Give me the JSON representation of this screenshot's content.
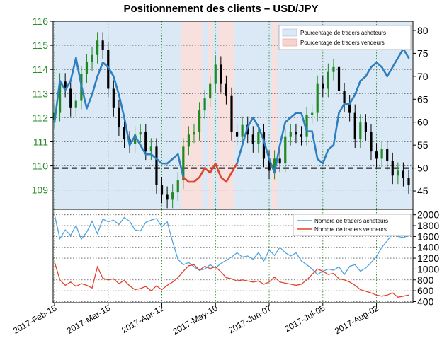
{
  "chart_data": [
    {
      "type": "line",
      "title": "Positionnement des clients – USD/JPY",
      "subtype": "price bars with sentiment overlay",
      "price_axis": {
        "side": "left",
        "ylim": [
          108.2,
          116.0
        ],
        "ticks": [
          "116",
          "115",
          "114",
          "113",
          "112",
          "111",
          "110",
          "109"
        ]
      },
      "sentiment_axis": {
        "side": "right",
        "ylim": [
          41,
          82
        ],
        "ticks": [
          "80",
          "75",
          "70",
          "65",
          "60",
          "55",
          "50",
          "45"
        ]
      },
      "x_tick_labels": [
        "2017-Feb-15",
        "2017-Mar-15",
        "2017-Apr-12",
        "2017-May-10",
        "2017-Jun-07",
        "2017-Jul-05",
        "2017-Aug-02"
      ],
      "legend": {
        "position": "top-right",
        "entries": [
          "Pourcentage de traders acheteurs",
          "Pourcentage de traders vendeurs"
        ]
      },
      "reference_line": {
        "value": 50,
        "style": "dashed",
        "color": "#000000"
      },
      "colors": {
        "long_line": "#2e7fc0",
        "short_line": "#e0442e",
        "bull_bar": "#1f8a1f",
        "bear_bar": "#000000",
        "long_fill": "#dbe9f6",
        "short_fill": "#f7e0de"
      },
      "x": [
        "02-15",
        "02-17",
        "02-21",
        "02-23",
        "02-27",
        "03-01",
        "03-03",
        "03-07",
        "03-09",
        "03-13",
        "03-15",
        "03-17",
        "03-21",
        "03-23",
        "03-27",
        "03-29",
        "03-31",
        "04-04",
        "04-06",
        "04-10",
        "04-12",
        "04-14",
        "04-18",
        "04-20",
        "04-24",
        "04-26",
        "04-28",
        "05-02",
        "05-04",
        "05-08",
        "05-10",
        "05-12",
        "05-16",
        "05-18",
        "05-22",
        "05-24",
        "05-26",
        "05-30",
        "06-01",
        "06-05",
        "06-07",
        "06-09",
        "06-13",
        "06-15",
        "06-19",
        "06-21",
        "06-23",
        "06-27",
        "06-29",
        "07-03",
        "07-05",
        "07-07",
        "07-11",
        "07-13",
        "07-17",
        "07-19",
        "07-21",
        "07-25",
        "07-27",
        "07-31",
        "08-02",
        "08-04",
        "08-08",
        "08-10",
        "08-14",
        "08-16",
        "08-18"
      ],
      "series": [
        {
          "name": "USD/JPY",
          "close": [
            112.2,
            113.5,
            113.2,
            112.4,
            112.7,
            113.8,
            114.3,
            114.6,
            115.2,
            114.8,
            113.2,
            112.4,
            111.6,
            111.1,
            110.9,
            111.3,
            111.4,
            110.6,
            110.8,
            109.2,
            108.8,
            108.6,
            108.9,
            109.4,
            110.8,
            111.3,
            111.4,
            112.3,
            112.8,
            113.4,
            114.2,
            113.4,
            112.9,
            111.4,
            111.2,
            111.7,
            111.3,
            110.9,
            111.4,
            110.3,
            109.8,
            110.3,
            110.1,
            111.2,
            111.4,
            111.3,
            111.2,
            112.1,
            112.2,
            113.4,
            113.2,
            113.9,
            114.1,
            113.1,
            112.6,
            112.2,
            111.1,
            111.8,
            111.4,
            110.6,
            110.3,
            110.7,
            110.2,
            109.6,
            109.8,
            109.5,
            109.2
          ]
        },
        {
          "name": "Pourcentage de traders acheteurs",
          "values": [
            60,
            69,
            67,
            69,
            74,
            68,
            63,
            66,
            70,
            73,
            72,
            70,
            66,
            61,
            55,
            57,
            55,
            53,
            53,
            52,
            51,
            51,
            52,
            53,
            48,
            47,
            47,
            48,
            50,
            49,
            51,
            48,
            47,
            49,
            51,
            55,
            59,
            61,
            59,
            56,
            52,
            49,
            55,
            60,
            61,
            62,
            62,
            58,
            58,
            52,
            51,
            54,
            55,
            62,
            64,
            64,
            66,
            69,
            70,
            72,
            73,
            72,
            70,
            72,
            74,
            76,
            74
          ]
        }
      ]
    },
    {
      "type": "line",
      "x_tick_labels": [
        "2017-Feb-15",
        "2017-Mar-15",
        "2017-Apr-12",
        "2017-May-10",
        "2017-Jun-07",
        "2017-Jul-05",
        "2017-Aug-02"
      ],
      "y_axis": {
        "side": "right",
        "ylim": [
          380,
          2100
        ],
        "ticks": [
          "2000",
          "1800",
          "1600",
          "1400",
          "1200",
          "1000",
          "800",
          "600",
          "400"
        ]
      },
      "legend": {
        "position": "top-right",
        "entries": [
          "Nombre de traders acheteurs",
          "Nombre de traders vendeurs"
        ]
      },
      "series": [
        {
          "name": "Nombre de traders acheteurs",
          "color": "#4fa3e0",
          "values": [
            2000,
            1560,
            1720,
            1620,
            1800,
            1550,
            1680,
            1880,
            1650,
            1920,
            1870,
            1900,
            1820,
            1950,
            1880,
            1720,
            1700,
            1860,
            1900,
            1930,
            1780,
            1870,
            1500,
            1180,
            1080,
            1120,
            1040,
            980,
            1000,
            1080,
            1020,
            1100,
            1160,
            1220,
            1300,
            1220,
            1240,
            1180,
            1300,
            1150,
            1350,
            1250,
            1400,
            1300,
            1240,
            1300,
            1150,
            1080,
            1000,
            900,
            960,
            1000,
            980,
            1040,
            900,
            1050,
            1080,
            960,
            1020,
            1120,
            1230,
            1400,
            1520,
            1650,
            1600,
            1580,
            1620
          ]
        },
        {
          "name": "Nombre de traders vendeurs",
          "color": "#e0442e",
          "values": [
            1130,
            800,
            700,
            760,
            680,
            730,
            700,
            650,
            1040,
            830,
            800,
            820,
            730,
            790,
            690,
            620,
            640,
            680,
            600,
            690,
            620,
            700,
            760,
            840,
            960,
            1060,
            1080,
            980,
            1050,
            1010,
            1040,
            950,
            840,
            820,
            780,
            800,
            780,
            760,
            780,
            720,
            760,
            850,
            760,
            740,
            720,
            700,
            720,
            800,
            900,
            1000,
            960,
            900,
            920,
            820,
            800,
            760,
            700,
            620,
            590,
            560,
            520,
            500,
            520,
            560,
            480,
            500,
            520
          ]
        }
      ]
    }
  ]
}
